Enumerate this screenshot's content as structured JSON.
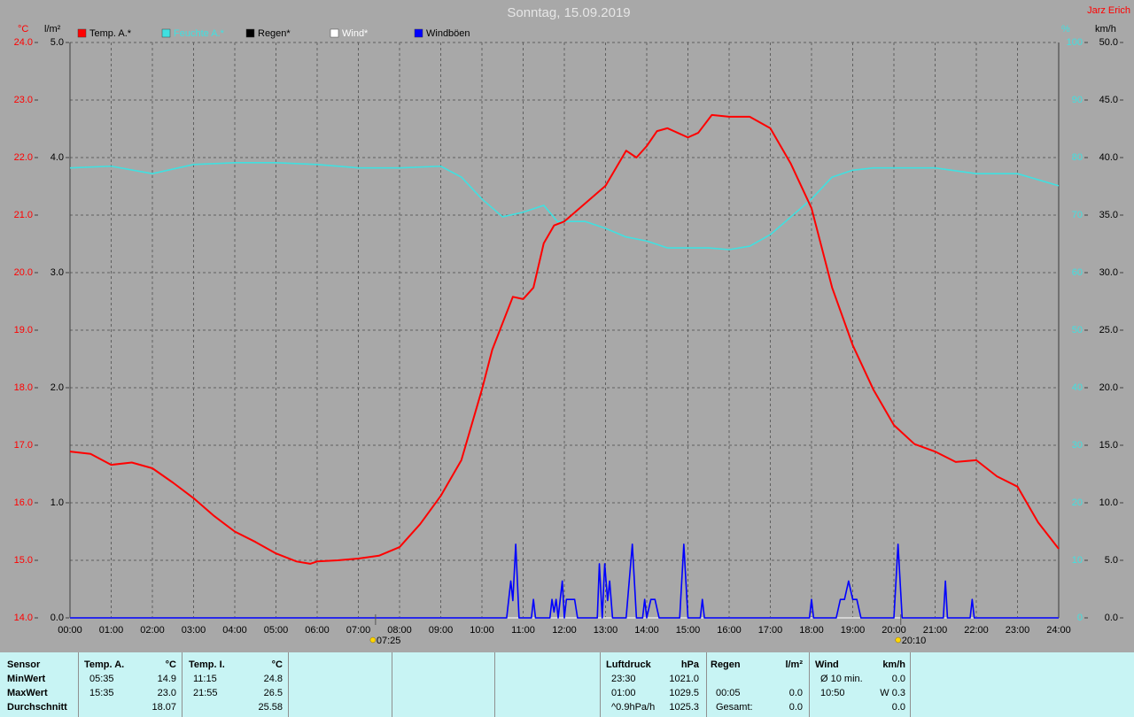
{
  "chart_data": {
    "type": "line",
    "title": "Sonntag, 15.09.2019",
    "author": "Jarz Erich",
    "ylabel": "°C",
    "y2label": "%",
    "y3label": "l/m²",
    "y4label": "km/h",
    "xlim": [
      0,
      24
    ],
    "xticks": [
      {
        "value": 0,
        "label": "00:00"
      },
      {
        "value": 1,
        "label": "01:00"
      },
      {
        "value": 2,
        "label": "02:00"
      },
      {
        "value": 3,
        "label": "03:00"
      },
      {
        "value": 4,
        "label": "04:00"
      },
      {
        "value": 5,
        "label": "05:00"
      },
      {
        "value": 6,
        "label": "06:00"
      },
      {
        "value": 7,
        "label": "07:00"
      },
      {
        "value": 8,
        "label": "08:00"
      },
      {
        "value": 9,
        "label": "09:00"
      },
      {
        "value": 10,
        "label": "10:00"
      },
      {
        "value": 11,
        "label": "11:00"
      },
      {
        "value": 12,
        "label": "12:00"
      },
      {
        "value": 13,
        "label": "13:00"
      },
      {
        "value": 14,
        "label": "14:00"
      },
      {
        "value": 15,
        "label": "15:00"
      },
      {
        "value": 16,
        "label": "16:00"
      },
      {
        "value": 17,
        "label": "17:00"
      },
      {
        "value": 18,
        "label": "18:00"
      },
      {
        "value": 19,
        "label": "19:00"
      },
      {
        "value": 20,
        "label": "20:00"
      },
      {
        "value": 21,
        "label": "21:00"
      },
      {
        "value": 22,
        "label": "22:00"
      },
      {
        "value": 23,
        "label": "23:00"
      },
      {
        "value": 24,
        "label": "24:00"
      }
    ],
    "ylim": [
      14,
      24
    ],
    "yticks": [
      {
        "value": 14,
        "label": "14.0"
      },
      {
        "value": 15,
        "label": "15.0"
      },
      {
        "value": 16,
        "label": "16.0"
      },
      {
        "value": 17,
        "label": "17.0"
      },
      {
        "value": 18,
        "label": "18.0"
      },
      {
        "value": 19,
        "label": "19.0"
      },
      {
        "value": 20,
        "label": "20.0"
      },
      {
        "value": 21,
        "label": "21.0"
      },
      {
        "value": 22,
        "label": "22.0"
      },
      {
        "value": 23,
        "label": "23.0"
      },
      {
        "value": 24,
        "label": "24.0"
      }
    ],
    "y2lim": [
      0,
      100
    ],
    "y2ticks": [
      0,
      10,
      20,
      30,
      40,
      50,
      60,
      70,
      80,
      90,
      100
    ],
    "y3lim": [
      0,
      5
    ],
    "y3ticks": [
      {
        "value": 0,
        "label": "0.0"
      },
      {
        "value": 1,
        "label": "1.0"
      },
      {
        "value": 2,
        "label": "2.0"
      },
      {
        "value": 3,
        "label": "3.0"
      },
      {
        "value": 4,
        "label": "4.0"
      },
      {
        "value": 5,
        "label": "5.0"
      }
    ],
    "y4lim": [
      0,
      50
    ],
    "y4ticks": [
      {
        "value": 0,
        "label": "0.0"
      },
      {
        "value": 5,
        "label": "5.0"
      },
      {
        "value": 10,
        "label": "10.0"
      },
      {
        "value": 15,
        "label": "15.0"
      },
      {
        "value": 20,
        "label": "20.0"
      },
      {
        "value": 25,
        "label": "25.0"
      },
      {
        "value": 30,
        "label": "30.0"
      },
      {
        "value": 35,
        "label": "35.0"
      },
      {
        "value": 40,
        "label": "40.0"
      },
      {
        "value": 45,
        "label": "45.0"
      },
      {
        "value": 50,
        "label": "50.0"
      }
    ],
    "grid": true,
    "series": [
      {
        "name": "Temp. A.*",
        "color": "#ff0000",
        "axis": "y",
        "x": [
          0,
          0.5,
          1,
          1.5,
          2,
          2.5,
          3,
          3.5,
          4,
          4.5,
          5,
          5.5,
          5.83,
          6,
          6.5,
          7,
          7.5,
          8,
          8.5,
          9,
          9.5,
          10,
          10.25,
          10.5,
          10.75,
          11,
          11.25,
          11.5,
          11.75,
          12,
          12.5,
          13,
          13.5,
          13.75,
          14,
          14.25,
          14.5,
          15,
          15.25,
          15.58,
          16,
          16.5,
          17,
          17.5,
          18,
          18.5,
          19,
          19.5,
          20,
          20.5,
          21,
          21.5,
          22,
          22.5,
          23,
          23.5,
          24
        ],
        "values": [
          16.89,
          16.85,
          16.66,
          16.7,
          16.6,
          16.35,
          16.08,
          15.77,
          15.5,
          15.32,
          15.12,
          14.98,
          14.94,
          14.98,
          15.0,
          15.03,
          15.08,
          15.23,
          15.63,
          16.12,
          16.74,
          17.97,
          18.66,
          19.12,
          19.58,
          19.54,
          19.74,
          20.51,
          20.82,
          20.89,
          21.2,
          21.51,
          22.12,
          22.0,
          22.2,
          22.46,
          22.51,
          22.35,
          22.43,
          22.74,
          22.71,
          22.71,
          22.51,
          21.89,
          21.12,
          19.74,
          18.74,
          17.97,
          17.35,
          17.02,
          16.89,
          16.71,
          16.74,
          16.46,
          16.28,
          15.66,
          15.2
        ]
      },
      {
        "name": "Feuchte A.*",
        "color": "#40e0e0",
        "axis": "y2",
        "x": [
          0,
          1,
          2,
          3,
          4,
          5,
          6,
          7,
          8,
          9,
          9.5,
          10,
          10.5,
          11,
          11.5,
          11.83,
          12.5,
          13,
          13.5,
          14,
          14.5,
          15,
          15.5,
          16,
          16.5,
          17,
          17.5,
          18,
          18.5,
          19,
          19.5,
          20,
          21,
          22,
          23,
          24
        ],
        "values": [
          78.2,
          78.5,
          77.2,
          78.8,
          79.1,
          79.1,
          78.8,
          78.2,
          78.2,
          78.5,
          76.6,
          72.8,
          69.7,
          70.5,
          71.7,
          68.9,
          68.9,
          67.7,
          66.2,
          65.5,
          64.3,
          64.3,
          64.3,
          64.0,
          64.6,
          66.6,
          69.7,
          72.8,
          76.6,
          77.8,
          78.2,
          78.2,
          78.2,
          77.2,
          77.2,
          75.1
        ]
      },
      {
        "name": "Regen*",
        "color": "#000000",
        "axis": "y3",
        "x": [
          0,
          24
        ],
        "values": [
          0,
          0
        ]
      },
      {
        "name": "Wind*",
        "color": "#ffffff",
        "axis": "y4",
        "x": [
          0,
          24
        ],
        "values": [
          0,
          0
        ]
      },
      {
        "name": "Windböen",
        "color": "#0000ff",
        "axis": "y4",
        "x": [
          0,
          10.6,
          10.7,
          10.75,
          10.82,
          10.9,
          11.2,
          11.25,
          11.3,
          11.65,
          11.7,
          11.75,
          11.8,
          11.85,
          11.95,
          12.0,
          12.05,
          12.25,
          12.32,
          12.8,
          12.85,
          12.92,
          12.98,
          13.05,
          13.1,
          13.17,
          13.5,
          13.65,
          13.75,
          13.9,
          13.95,
          14.0,
          14.1,
          14.2,
          14.3,
          14.8,
          14.9,
          15.0,
          15.3,
          15.35,
          15.4,
          17.95,
          18.0,
          18.05,
          18.6,
          18.7,
          18.8,
          18.9,
          19.0,
          19.1,
          19.2,
          20.0,
          20.1,
          20.2,
          21.2,
          21.25,
          21.3,
          21.85,
          21.9,
          21.95,
          24
        ],
        "values": [
          0,
          0,
          3.2,
          1.5,
          6.4,
          0,
          0,
          1.6,
          0,
          0,
          1.6,
          0.5,
          1.6,
          0,
          3.2,
          0,
          1.6,
          1.6,
          0,
          0,
          4.7,
          0,
          4.7,
          1.5,
          3.2,
          0,
          0,
          6.4,
          0,
          0,
          1.6,
          0,
          1.6,
          1.6,
          0,
          0,
          6.4,
          0,
          0,
          1.6,
          0,
          0,
          1.6,
          0,
          0,
          1.6,
          1.6,
          3.2,
          1.6,
          1.6,
          0,
          0,
          6.4,
          0,
          0,
          3.2,
          0,
          0,
          1.6,
          0,
          0
        ]
      }
    ],
    "annotations": [
      {
        "text": "07:25",
        "x": 7.4167
      },
      {
        "text": "20:10",
        "x": 20.1667
      }
    ]
  },
  "table": {
    "rows": [
      [
        "Sensor",
        "Temp. A.",
        "°C",
        "Temp. I.",
        "°C",
        "Luftdruck",
        "hPa",
        "Regen",
        "l/m²",
        "Wind",
        "km/h"
      ],
      [
        "MinWert",
        "05:35",
        "14.9",
        "11:15",
        "24.8",
        "23:30",
        "1021.0",
        null,
        null,
        "Ø 10 min.",
        "0.0"
      ],
      [
        "MaxWert",
        "15:35",
        "23.0",
        "21:55",
        "26.5",
        "01:00",
        "1029.5",
        "00:05",
        "0.0",
        "10:50",
        "W 0.3"
      ],
      [
        "Durchschnitt",
        null,
        "18.07",
        null,
        "25.58",
        "^0.9hPa/h",
        "1025.3",
        "Gesamt:",
        "0.0",
        null,
        "0.0"
      ]
    ]
  }
}
